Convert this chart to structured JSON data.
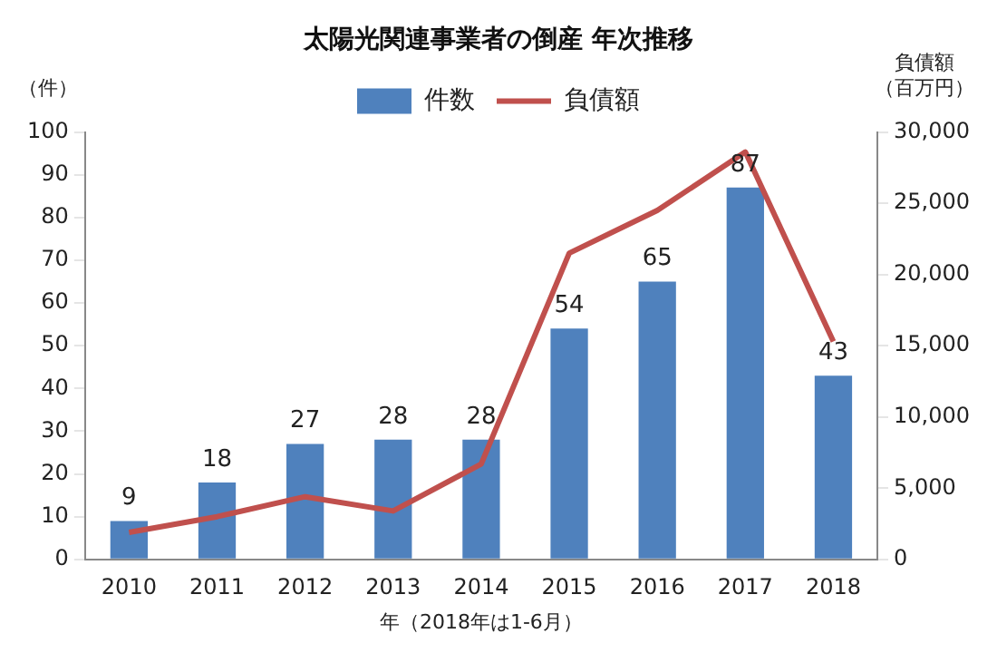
{
  "chart_data": {
    "type": "bar",
    "title": "太陽光関連事業者の倒産 年次推移",
    "xlabel": "年（2018年は1-6月）",
    "ylabel": "（件）",
    "y2label": "負債額（百万円）",
    "categories": [
      "2010",
      "2011",
      "2012",
      "2013",
      "2014",
      "2015",
      "2016",
      "2017",
      "2018"
    ],
    "series": [
      {
        "name": "件数",
        "color": "#4f81bd",
        "values": [
          9,
          18,
          27,
          28,
          28,
          54,
          65,
          87,
          43
        ],
        "value_labels": [
          "9",
          "18",
          "27",
          "28",
          "28",
          "54",
          "65",
          "87",
          "43"
        ]
      },
      {
        "name": "負債額",
        "type": "line",
        "axis": "y2",
        "color": "#c0504d",
        "marker": "none",
        "values": [
          1900,
          3000,
          4400,
          3400,
          6700,
          21500,
          24500,
          28600,
          15300
        ]
      }
    ],
    "ylim": [
      0,
      100
    ],
    "yticks": [
      0,
      10,
      20,
      30,
      40,
      50,
      60,
      70,
      80,
      90,
      100
    ],
    "y2lim": [
      0,
      30000
    ],
    "y2ticks": [
      {
        "value": 0,
        "label": "0"
      },
      {
        "value": 5000,
        "label": "5,000"
      },
      {
        "value": 10000,
        "label": "10,000"
      },
      {
        "value": 15000,
        "label": "15,000"
      },
      {
        "value": 20000,
        "label": "20,000"
      },
      {
        "value": 25000,
        "label": "25,000"
      },
      {
        "value": 30000,
        "label": "30,000"
      }
    ],
    "grid": false,
    "legend": "top"
  }
}
